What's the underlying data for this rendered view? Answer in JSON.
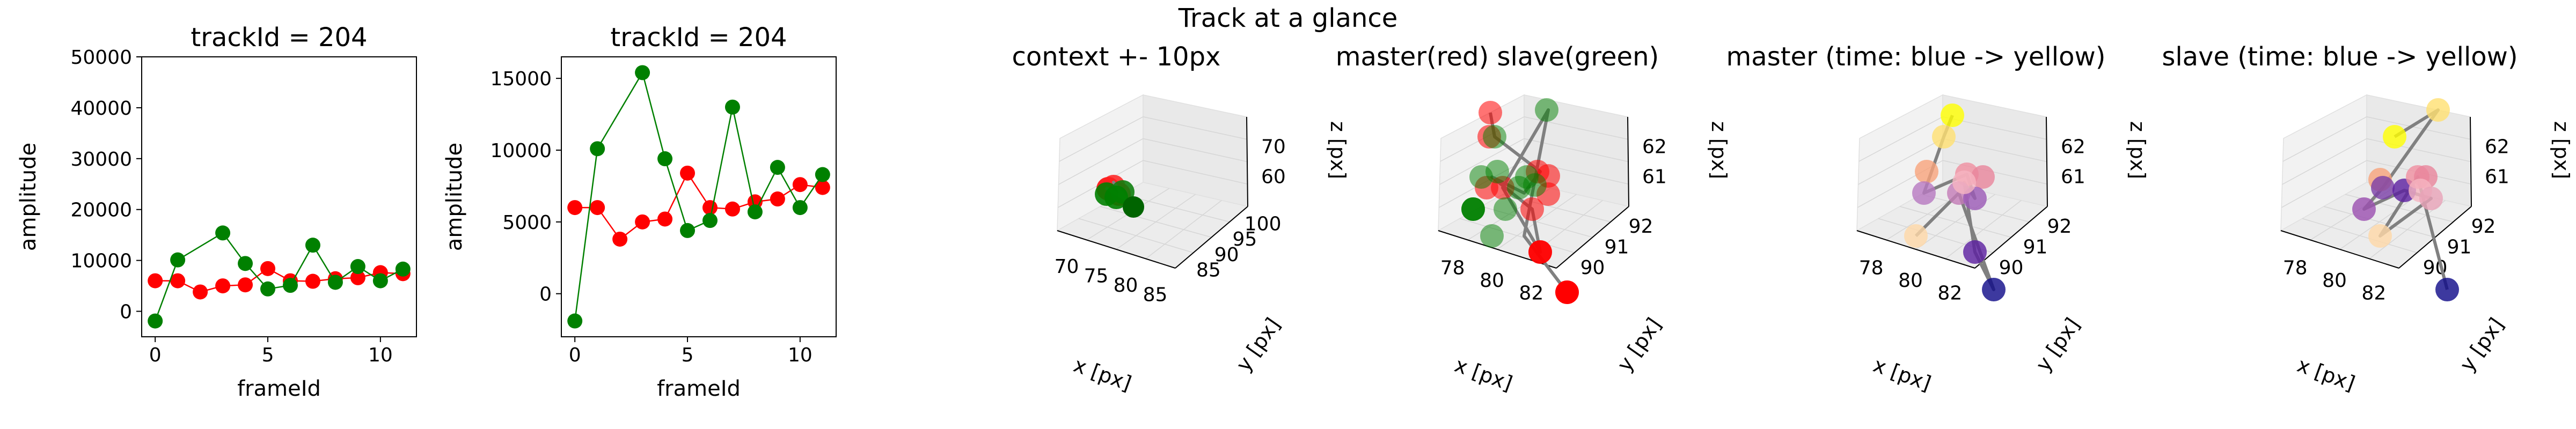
{
  "suptitle": "Track at a glance",
  "chart_data": [
    {
      "type": "line",
      "title": "trackId = 204",
      "xlabel": "frameId",
      "ylabel": "amplitude",
      "xlim": [
        -0.6,
        11.6
      ],
      "ylim": [
        -5000,
        50000
      ],
      "x_ticks": [
        0,
        5,
        10
      ],
      "y_ticks": [
        0,
        10000,
        20000,
        30000,
        40000,
        50000
      ],
      "grid": false,
      "x": [
        0,
        1,
        2,
        3,
        4,
        5,
        6,
        7,
        8,
        9,
        10,
        11
      ],
      "series": [
        {
          "color": "#ff0000",
          "values": [
            6000,
            6000,
            3800,
            5000,
            5200,
            8400,
            6000,
            5900,
            6400,
            6600,
            7600,
            7400
          ]
        },
        {
          "color": "#008000",
          "values": [
            -1900,
            10100,
            null,
            15400,
            9400,
            4400,
            5100,
            13000,
            5700,
            8800,
            6000,
            8300
          ]
        }
      ]
    },
    {
      "type": "line",
      "title": "trackId = 204",
      "xlabel": "frameId",
      "ylabel": "amplitude",
      "xlim": [
        -0.6,
        11.6
      ],
      "ylim": [
        -3000,
        16500
      ],
      "x_ticks": [
        0,
        5,
        10
      ],
      "y_ticks": [
        0,
        5000,
        10000,
        15000
      ],
      "grid": false,
      "x": [
        0,
        1,
        2,
        3,
        4,
        5,
        6,
        7,
        8,
        9,
        10,
        11
      ],
      "series": [
        {
          "color": "#ff0000",
          "values": [
            6000,
            6000,
            3800,
            5000,
            5200,
            8400,
            6000,
            5900,
            6400,
            6600,
            7600,
            7400
          ]
        },
        {
          "color": "#008000",
          "values": [
            -1900,
            10100,
            null,
            15400,
            9400,
            4400,
            5100,
            13000,
            5700,
            8800,
            6000,
            8300
          ]
        }
      ]
    },
    {
      "type": "scatter",
      "title": "context +- 10px",
      "xlabel": "x [px]",
      "ylabel": "y [px]",
      "zlabel": "z [px]",
      "x_ticks": [
        "70",
        "75",
        "80",
        "85"
      ],
      "y_ticks": [
        "85",
        "90",
        "95",
        "100"
      ],
      "z_ticks": [
        "60",
        "70"
      ]
    },
    {
      "type": "scatter",
      "title": "master(red) slave(green)",
      "xlabel": "x [px]",
      "ylabel": "y [px]",
      "zlabel": "z [px]",
      "x_ticks": [
        "78",
        "80",
        "82"
      ],
      "y_ticks": [
        "90",
        "91",
        "92"
      ],
      "z_ticks": [
        "61",
        "62"
      ]
    },
    {
      "type": "scatter",
      "title": "master (time: blue -> yellow)",
      "xlabel": "x [px]",
      "ylabel": "y [px]",
      "zlabel": "z [px]",
      "x_ticks": [
        "78",
        "80",
        "82"
      ],
      "y_ticks": [
        "90",
        "91",
        "92"
      ],
      "z_ticks": [
        "61",
        "62"
      ]
    },
    {
      "type": "scatter",
      "title": "slave (time: blue -> yellow)",
      "xlabel": "x [px]",
      "ylabel": "y [px]",
      "zlabel": "z [px]",
      "x_ticks": [
        "78",
        "80",
        "82"
      ],
      "y_ticks": [
        "90",
        "91",
        "92"
      ],
      "z_ticks": [
        "61",
        "62"
      ]
    }
  ]
}
